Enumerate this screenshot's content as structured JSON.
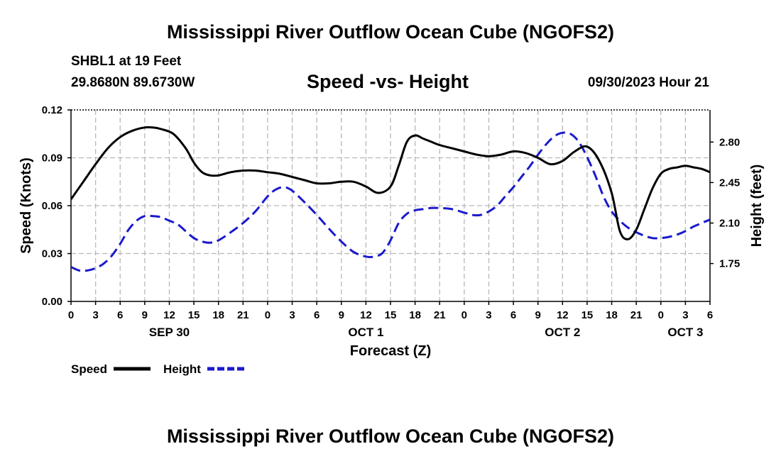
{
  "header": {
    "title": "Mississippi River Outflow Ocean Cube (NGOFS2)",
    "station": "SHBL1 at 19 Feet",
    "coords": "29.8680N  89.6730W",
    "subtitle": "Speed -vs- Height",
    "datetime": "09/30/2023 Hour 21"
  },
  "footer": {
    "title": "Mississippi River Outflow Ocean Cube (NGOFS2)"
  },
  "chart_data": {
    "type": "line",
    "title": "Speed -vs- Height",
    "xlabel": "Forecast (Z)",
    "ylabel": "Speed (Knots)",
    "y2label": "Height (feet)",
    "xlim": [
      0,
      78
    ],
    "ylim": [
      0,
      0.12
    ],
    "y2lim": [
      1.4225,
      3.0775
    ],
    "x_ticks": [
      0,
      3,
      6,
      9,
      12,
      15,
      18,
      21,
      24,
      27,
      30,
      33,
      36,
      39,
      42,
      45,
      48,
      51,
      54,
      57,
      60,
      63,
      66,
      69,
      72,
      75,
      78
    ],
    "x_tick_labels": [
      "0",
      "3",
      "6",
      "9",
      "12",
      "15",
      "18",
      "21",
      "0",
      "3",
      "6",
      "9",
      "12",
      "15",
      "18",
      "21",
      "0",
      "3",
      "6",
      "9",
      "12",
      "15",
      "18",
      "21",
      "0",
      "3",
      "6"
    ],
    "date_labels": [
      {
        "x": 12,
        "label": "SEP 30"
      },
      {
        "x": 36,
        "label": "OCT 1"
      },
      {
        "x": 60,
        "label": "OCT 2"
      },
      {
        "x": 75,
        "label": "OCT 3"
      }
    ],
    "y_ticks": [
      0,
      0.03,
      0.06,
      0.09,
      0.12
    ],
    "y_tick_labels": [
      "0.00",
      "0.03",
      "0.06",
      "0.09",
      "0.12"
    ],
    "y2_ticks": [
      1.75,
      2.1,
      2.45,
      2.8
    ],
    "y2_tick_labels": [
      "1.75",
      "2.10",
      "2.45",
      "2.80"
    ],
    "grid": true,
    "legend": [
      {
        "label": "Speed",
        "color": "#000000",
        "style": "solid"
      },
      {
        "label": "Height",
        "color": "#1a1acc",
        "style": "dashed"
      }
    ],
    "series": [
      {
        "name": "Speed",
        "axis": "left",
        "color": "#000000",
        "style": "solid",
        "x": [
          0,
          1.5,
          3,
          4.5,
          6,
          7.5,
          9,
          10,
          11,
          12.5,
          14,
          15,
          16,
          17,
          18,
          19.5,
          21,
          22.5,
          24,
          25.5,
          27,
          28.5,
          30,
          31.5,
          33,
          34.5,
          36,
          37.5,
          39,
          40,
          41,
          42,
          43,
          44,
          45,
          46.5,
          48,
          49.5,
          51,
          52.5,
          54,
          55.5,
          57,
          58.5,
          60,
          61.5,
          63,
          64.5,
          66,
          67,
          68,
          69,
          70,
          71,
          72,
          73,
          74,
          75,
          76,
          77,
          78
        ],
        "values": [
          0.064,
          0.075,
          0.086,
          0.096,
          0.103,
          0.107,
          0.109,
          0.109,
          0.108,
          0.105,
          0.096,
          0.087,
          0.081,
          0.079,
          0.079,
          0.081,
          0.082,
          0.082,
          0.081,
          0.08,
          0.078,
          0.076,
          0.074,
          0.074,
          0.075,
          0.075,
          0.072,
          0.068,
          0.072,
          0.085,
          0.1,
          0.104,
          0.102,
          0.1,
          0.098,
          0.096,
          0.094,
          0.092,
          0.091,
          0.092,
          0.094,
          0.093,
          0.09,
          0.086,
          0.088,
          0.094,
          0.097,
          0.088,
          0.068,
          0.044,
          0.039,
          0.045,
          0.058,
          0.071,
          0.08,
          0.083,
          0.084,
          0.085,
          0.084,
          0.083,
          0.081
        ]
      },
      {
        "name": "Height",
        "axis": "right",
        "color": "#1a1acc",
        "style": "dashed",
        "x": [
          0,
          1,
          2,
          3,
          4,
          5,
          6,
          7,
          8,
          9,
          10,
          11,
          12,
          13,
          14,
          15,
          16,
          17,
          18,
          19.5,
          21,
          22.5,
          24,
          25,
          26,
          27,
          28.5,
          30,
          31.5,
          33,
          34.5,
          36,
          37,
          38,
          39,
          40,
          41,
          42,
          43,
          44,
          45,
          46.5,
          48,
          49,
          50,
          51,
          52,
          53,
          54,
          55,
          56,
          57,
          58,
          59,
          60,
          61,
          62,
          63,
          64,
          65,
          66,
          67,
          68,
          69,
          70,
          71,
          72,
          73,
          74,
          75,
          76,
          77,
          78
        ],
        "values": [
          1.72,
          1.69,
          1.69,
          1.71,
          1.75,
          1.82,
          1.92,
          2.04,
          2.12,
          2.16,
          2.16,
          2.15,
          2.12,
          2.09,
          2.03,
          1.97,
          1.94,
          1.93,
          1.95,
          2.02,
          2.1,
          2.2,
          2.33,
          2.39,
          2.41,
          2.38,
          2.28,
          2.17,
          2.05,
          1.94,
          1.85,
          1.81,
          1.81,
          1.84,
          1.95,
          2.1,
          2.18,
          2.21,
          2.22,
          2.23,
          2.23,
          2.22,
          2.19,
          2.17,
          2.17,
          2.2,
          2.25,
          2.33,
          2.41,
          2.5,
          2.59,
          2.69,
          2.78,
          2.85,
          2.88,
          2.87,
          2.8,
          2.67,
          2.51,
          2.33,
          2.2,
          2.12,
          2.06,
          2.02,
          1.99,
          1.97,
          1.97,
          1.98,
          2.0,
          2.03,
          2.07,
          2.1,
          2.13
        ]
      }
    ]
  }
}
